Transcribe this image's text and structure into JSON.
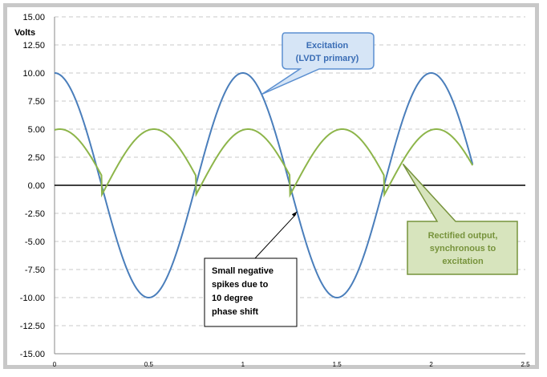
{
  "chart_data": {
    "type": "line",
    "ylabel": "Volts",
    "xlim": [
      0,
      2.5
    ],
    "ylim": [
      -15,
      15
    ],
    "x_ticks": [
      "0",
      "0.5",
      "1",
      "1.5",
      "2",
      "2.5"
    ],
    "y_ticks": [
      "15.00",
      "12.50",
      "10.00",
      "7.50",
      "5.00",
      "2.50",
      "0.00",
      "-2.50",
      "-5.00",
      "-7.50",
      "-10.00",
      "-12.50",
      "-15.00"
    ],
    "grid": "horizontal dashed",
    "series": [
      {
        "name": "Excitation (LVDT primary)",
        "color": "#4a7ebb",
        "function": "10*cos(2*pi*x)",
        "x_range": [
          0,
          2.22
        ],
        "peak": 10
      },
      {
        "name": "Rectified output, synchronous to excitation",
        "color": "#8db54a",
        "function": "5*cos(2*pi*x - 10deg) * sign(cos(2*pi*x))",
        "x_range": [
          0,
          2.22
        ],
        "peak": 5,
        "phase_shift_deg": 10
      }
    ],
    "annotations": [
      {
        "text": [
          "Excitation",
          "(LVDT primary)"
        ],
        "points_to": [
          1.1,
          8.1
        ]
      },
      {
        "text": [
          "Rectified output,",
          "synchronous to",
          "excitation"
        ],
        "points_to": [
          1.85,
          1.9
        ]
      },
      {
        "text": [
          "Small negative",
          "spikes due to",
          "10 degree",
          "phase shift"
        ],
        "points_to": [
          1.29,
          -2.3
        ]
      }
    ]
  }
}
